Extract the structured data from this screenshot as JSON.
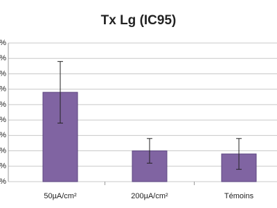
{
  "chart_data": {
    "type": "bar",
    "title": "Tx Lg (IC95)",
    "categories": [
      "50µA/cm²",
      "200µA/cm²",
      "Témoins"
    ],
    "values": [
      29,
      10,
      9
    ],
    "errors": [
      10,
      4,
      5
    ],
    "color": "#8064a2",
    "ylim": [
      0,
      45
    ],
    "yticks": [
      {
        "value": 0,
        "label": "%"
      },
      {
        "value": 5,
        "label": "%"
      },
      {
        "value": 10,
        "label": "%"
      },
      {
        "value": 15,
        "label": "%"
      },
      {
        "value": 20,
        "label": "%"
      },
      {
        "value": 25,
        "label": "%"
      },
      {
        "value": 30,
        "label": "%"
      },
      {
        "value": 35,
        "label": "%"
      },
      {
        "value": 40,
        "label": "%"
      },
      {
        "value": 45,
        "label": "%"
      }
    ],
    "grid": true
  }
}
